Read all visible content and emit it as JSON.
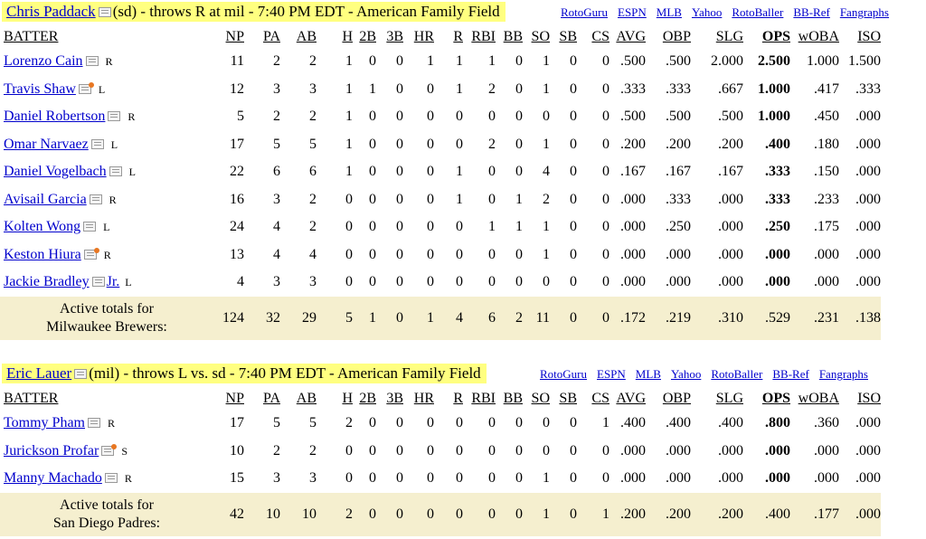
{
  "columns": [
    "BATTER",
    "NP",
    "PA",
    "AB",
    "H",
    "2B",
    "3B",
    "HR",
    "R",
    "RBI",
    "BB",
    "SO",
    "SB",
    "CS",
    "AVG",
    "OBP",
    "SLG",
    "OPS",
    "wOBA",
    "ISO"
  ],
  "links": [
    "RotoGuru",
    "ESPN",
    "MLB",
    "Yahoo",
    "RotoBaller",
    "BB-Ref",
    "Fangraphs"
  ],
  "games": [
    {
      "pitcher_name": "Chris Paddack",
      "pitcher_info": "(sd) - throws R at mil - 7:40 PM EDT - American Family Field",
      "batters": [
        {
          "name": "Lorenzo Cain",
          "hand": "R",
          "hot": false,
          "stats": [
            "11",
            "2",
            "2",
            "1",
            "0",
            "0",
            "1",
            "1",
            "1",
            "0",
            "1",
            "0",
            "0",
            ".500",
            ".500",
            "2.000",
            "2.500",
            "1.000",
            "1.500"
          ]
        },
        {
          "name": "Travis Shaw",
          "hand": "L",
          "hot": true,
          "stats": [
            "12",
            "3",
            "3",
            "1",
            "1",
            "0",
            "0",
            "1",
            "2",
            "0",
            "1",
            "0",
            "0",
            ".333",
            ".333",
            ".667",
            "1.000",
            ".417",
            ".333"
          ]
        },
        {
          "name": "Daniel Robertson",
          "hand": "R",
          "hot": false,
          "stats": [
            "5",
            "2",
            "2",
            "1",
            "0",
            "0",
            "0",
            "0",
            "0",
            "0",
            "0",
            "0",
            "0",
            ".500",
            ".500",
            ".500",
            "1.000",
            ".450",
            ".000"
          ]
        },
        {
          "name": "Omar Narvaez",
          "hand": "L",
          "hot": false,
          "stats": [
            "17",
            "5",
            "5",
            "1",
            "0",
            "0",
            "0",
            "0",
            "2",
            "0",
            "1",
            "0",
            "0",
            ".200",
            ".200",
            ".200",
            ".400",
            ".180",
            ".000"
          ]
        },
        {
          "name": "Daniel Vogelbach",
          "hand": "L",
          "hot": false,
          "stats": [
            "22",
            "6",
            "6",
            "1",
            "0",
            "0",
            "0",
            "1",
            "0",
            "0",
            "4",
            "0",
            "0",
            ".167",
            ".167",
            ".167",
            ".333",
            ".150",
            ".000"
          ]
        },
        {
          "name": "Avisail Garcia",
          "hand": "R",
          "hot": false,
          "stats": [
            "16",
            "3",
            "2",
            "0",
            "0",
            "0",
            "0",
            "1",
            "0",
            "1",
            "2",
            "0",
            "0",
            ".000",
            ".333",
            ".000",
            ".333",
            ".233",
            ".000"
          ]
        },
        {
          "name": "Kolten Wong",
          "hand": "L",
          "hot": false,
          "stats": [
            "24",
            "4",
            "2",
            "0",
            "0",
            "0",
            "0",
            "0",
            "1",
            "1",
            "1",
            "0",
            "0",
            ".000",
            ".250",
            ".000",
            ".250",
            ".175",
            ".000"
          ]
        },
        {
          "name": "Keston Hiura",
          "hand": "R",
          "hot": true,
          "stats": [
            "13",
            "4",
            "4",
            "0",
            "0",
            "0",
            "0",
            "0",
            "0",
            "0",
            "1",
            "0",
            "0",
            ".000",
            ".000",
            ".000",
            ".000",
            ".000",
            ".000"
          ]
        },
        {
          "name": "Jackie Bradley",
          "suffix": "Jr.",
          "hand": "L",
          "hot": false,
          "stats": [
            "4",
            "3",
            "3",
            "0",
            "0",
            "0",
            "0",
            "0",
            "0",
            "0",
            "0",
            "0",
            "0",
            ".000",
            ".000",
            ".000",
            ".000",
            ".000",
            ".000"
          ]
        }
      ],
      "totals_label_1": "Active totals for",
      "totals_label_2": "Milwaukee Brewers:",
      "totals": [
        "124",
        "32",
        "29",
        "5",
        "1",
        "0",
        "1",
        "4",
        "6",
        "2",
        "11",
        "0",
        "0",
        ".172",
        ".219",
        ".310",
        ".529",
        ".231",
        ".138"
      ]
    },
    {
      "pitcher_name": "Eric Lauer",
      "pitcher_info": "(mil) - throws L vs. sd - 7:40 PM EDT - American Family Field",
      "batters": [
        {
          "name": "Tommy Pham",
          "hand": "R",
          "hot": false,
          "stats": [
            "17",
            "5",
            "5",
            "2",
            "0",
            "0",
            "0",
            "0",
            "0",
            "0",
            "0",
            "0",
            "1",
            ".400",
            ".400",
            ".400",
            ".800",
            ".360",
            ".000"
          ]
        },
        {
          "name": "Jurickson Profar",
          "hand": "S",
          "hot": true,
          "stats": [
            "10",
            "2",
            "2",
            "0",
            "0",
            "0",
            "0",
            "0",
            "0",
            "0",
            "0",
            "0",
            "0",
            ".000",
            ".000",
            ".000",
            ".000",
            ".000",
            ".000"
          ]
        },
        {
          "name": "Manny Machado",
          "hand": "R",
          "hot": false,
          "stats": [
            "15",
            "3",
            "3",
            "0",
            "0",
            "0",
            "0",
            "0",
            "0",
            "0",
            "1",
            "0",
            "0",
            ".000",
            ".000",
            ".000",
            ".000",
            ".000",
            ".000"
          ]
        }
      ],
      "totals_label_1": "Active totals for",
      "totals_label_2": "San Diego Padres:",
      "totals": [
        "42",
        "10",
        "10",
        "2",
        "0",
        "0",
        "0",
        "0",
        "0",
        "0",
        "1",
        "0",
        "1",
        ".200",
        ".200",
        ".200",
        ".400",
        ".177",
        ".000"
      ]
    }
  ]
}
